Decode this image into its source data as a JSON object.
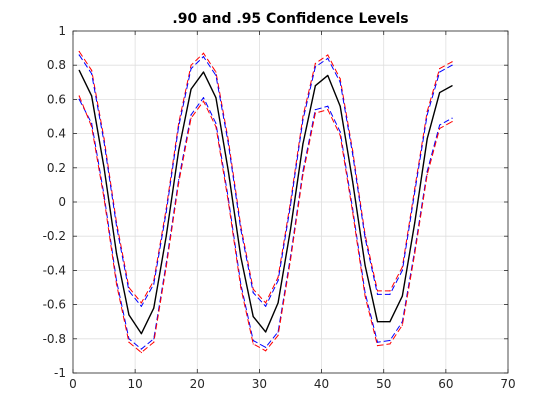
{
  "chart_data": {
    "type": "line",
    "title": ".90 and .95 Confidence Levels",
    "xlabel": "",
    "ylabel": "",
    "xlim": [
      0,
      70
    ],
    "ylim": [
      -1,
      1
    ],
    "x_ticks": [
      0,
      10,
      20,
      30,
      40,
      50,
      60,
      70
    ],
    "y_ticks": [
      -1,
      -0.8,
      -0.6,
      -0.4,
      -0.2,
      0,
      0.2,
      0.4,
      0.6,
      0.8,
      1
    ],
    "y_tick_labels": [
      "-1",
      "-0.8",
      "-0.6",
      "-0.4",
      "-0.2",
      "0",
      "0.2",
      "0.4",
      "0.6",
      "0.8",
      "1"
    ],
    "grid": true,
    "legend": "none",
    "x": [
      1,
      3,
      5,
      7,
      9,
      11,
      13,
      15,
      17,
      19,
      21,
      23,
      25,
      27,
      29,
      31,
      33,
      35,
      37,
      39,
      41,
      43,
      45,
      47,
      49,
      51,
      53,
      55,
      57,
      59,
      61
    ],
    "series": [
      {
        "role": "estimate",
        "color": "#000000",
        "style": "solid",
        "values": [
          0.77,
          0.62,
          0.2,
          -0.3,
          -0.66,
          -0.77,
          -0.62,
          -0.2,
          0.3,
          0.66,
          0.76,
          0.61,
          0.18,
          -0.32,
          -0.67,
          -0.76,
          -0.59,
          -0.16,
          0.34,
          0.68,
          0.74,
          0.56,
          0.12,
          -0.37,
          -0.7,
          -0.7,
          -0.55,
          -0.12,
          0.37,
          0.64,
          0.68
        ]
      },
      {
        "role": "upper .95",
        "color": "#ff0000",
        "style": "dashed",
        "values": [
          0.88,
          0.77,
          0.37,
          -0.12,
          -0.5,
          -0.59,
          -0.46,
          -0.04,
          0.46,
          0.8,
          0.87,
          0.76,
          0.36,
          -0.14,
          -0.51,
          -0.59,
          -0.44,
          0.0,
          0.5,
          0.81,
          0.86,
          0.72,
          0.3,
          -0.19,
          -0.52,
          -0.52,
          -0.38,
          0.08,
          0.53,
          0.78,
          0.82
        ]
      },
      {
        "role": "upper .90",
        "color": "#0000ff",
        "style": "dashed",
        "values": [
          0.86,
          0.75,
          0.35,
          -0.14,
          -0.52,
          -0.61,
          -0.48,
          -0.06,
          0.44,
          0.78,
          0.85,
          0.74,
          0.34,
          -0.16,
          -0.53,
          -0.61,
          -0.46,
          -0.02,
          0.48,
          0.79,
          0.84,
          0.7,
          0.28,
          -0.21,
          -0.54,
          -0.54,
          -0.4,
          0.06,
          0.51,
          0.76,
          0.8
        ]
      },
      {
        "role": "lower .90",
        "color": "#0000ff",
        "style": "dashed",
        "values": [
          0.6,
          0.46,
          0.04,
          -0.46,
          -0.8,
          -0.86,
          -0.8,
          -0.36,
          0.13,
          0.51,
          0.61,
          0.46,
          0.02,
          -0.48,
          -0.81,
          -0.85,
          -0.76,
          -0.32,
          0.18,
          0.54,
          0.56,
          0.41,
          -0.04,
          -0.53,
          -0.82,
          -0.81,
          -0.7,
          -0.28,
          0.18,
          0.45,
          0.49
        ]
      },
      {
        "role": "lower .95",
        "color": "#ff0000",
        "style": "dashed",
        "values": [
          0.62,
          0.44,
          0.02,
          -0.48,
          -0.82,
          -0.88,
          -0.82,
          -0.38,
          0.11,
          0.49,
          0.59,
          0.44,
          0.0,
          -0.5,
          -0.83,
          -0.87,
          -0.78,
          -0.34,
          0.16,
          0.52,
          0.54,
          0.39,
          -0.06,
          -0.55,
          -0.84,
          -0.83,
          -0.72,
          -0.3,
          0.16,
          0.43,
          0.47
        ]
      }
    ]
  }
}
